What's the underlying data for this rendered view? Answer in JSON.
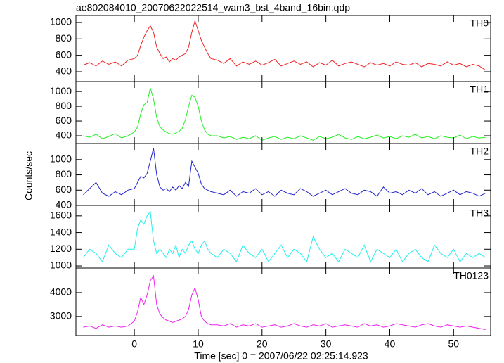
{
  "chart_data": {
    "type": "line",
    "title": "ae802084010_20070622022514_wam3_bst_4band_16bin.qdp",
    "xlabel": "Time [sec] 0 = 2007/06/22 02:25:14.923",
    "ylabel": "Counts/sec",
    "x": [
      -8,
      -7,
      -6,
      -5,
      -4,
      -3,
      -2,
      -1,
      0,
      0.5,
      1,
      1.5,
      2,
      2.5,
      3,
      3.5,
      4,
      4.5,
      5,
      5.5,
      6,
      6.5,
      7,
      7.5,
      8,
      8.5,
      9,
      9.5,
      10,
      10.5,
      11,
      11.5,
      12,
      13,
      14,
      15,
      16,
      17,
      18,
      19,
      20,
      21,
      22,
      23,
      24,
      25,
      26,
      27,
      28,
      29,
      30,
      31,
      32,
      33,
      34,
      35,
      36,
      37,
      38,
      39,
      40,
      41,
      42,
      43,
      44,
      45,
      46,
      47,
      48,
      49,
      50,
      51,
      52,
      53,
      54,
      55
    ],
    "xlim": [
      -9.15,
      55.8
    ],
    "xticks": [
      0,
      10,
      20,
      30,
      40,
      50
    ],
    "series": [
      {
        "name": "TH0",
        "color": "#ee2222",
        "ylim": [
          280,
          1085
        ],
        "yticks": [
          400,
          600,
          800,
          1000
        ],
        "values": [
          480,
          510,
          470,
          530,
          490,
          520,
          470,
          540,
          560,
          600,
          720,
          820,
          900,
          960,
          880,
          700,
          620,
          560,
          580,
          520,
          560,
          540,
          580,
          600,
          620,
          700,
          880,
          1020,
          900,
          780,
          700,
          620,
          560,
          540,
          500,
          560,
          470,
          520,
          490,
          530,
          480,
          510,
          550,
          470,
          500,
          530,
          490,
          520,
          460,
          510,
          480,
          540,
          470,
          500,
          520,
          490,
          460,
          510,
          480,
          500,
          470,
          520,
          490,
          480,
          510,
          460,
          500,
          490,
          470,
          520,
          480,
          500,
          460,
          490,
          470,
          420
        ]
      },
      {
        "name": "TH1",
        "color": "#22ee22",
        "ylim": [
          295,
          1135
        ],
        "yticks": [
          400,
          600,
          800,
          1000
        ],
        "values": [
          400,
          380,
          420,
          360,
          390,
          430,
          370,
          400,
          450,
          520,
          700,
          820,
          850,
          1050,
          900,
          650,
          520,
          480,
          450,
          430,
          420,
          440,
          460,
          500,
          620,
          800,
          950,
          920,
          800,
          600,
          480,
          420,
          400,
          400,
          370,
          390,
          350,
          380,
          360,
          400,
          340,
          370,
          390,
          350,
          380,
          360,
          400,
          370,
          340,
          390,
          360,
          380,
          420,
          370,
          350,
          390,
          360,
          380,
          410,
          370,
          390,
          360,
          400,
          380,
          420,
          370,
          390,
          360,
          400,
          380,
          370,
          410,
          360,
          390,
          370,
          380
        ]
      },
      {
        "name": "TH2",
        "color": "#2222cc",
        "ylim": [
          400,
          1210
        ],
        "yticks": [
          400,
          600,
          800,
          1000
        ],
        "values": [
          540,
          620,
          700,
          560,
          520,
          580,
          540,
          600,
          620,
          700,
          780,
          760,
          820,
          980,
          1150,
          800,
          640,
          600,
          620,
          580,
          640,
          600,
          660,
          620,
          700,
          650,
          980,
          900,
          820,
          680,
          620,
          600,
          580,
          560,
          540,
          600,
          520,
          580,
          560,
          620,
          540,
          580,
          520,
          600,
          560,
          540,
          620,
          580,
          520,
          560,
          600,
          540,
          580,
          620,
          560,
          540,
          600,
          580,
          520,
          640,
          560,
          580,
          540,
          600,
          560,
          620,
          540,
          580,
          520,
          560,
          600,
          540,
          580,
          560,
          520,
          560
        ]
      },
      {
        "name": "TH3",
        "color": "#22eeee",
        "ylim": [
          975,
          1725
        ],
        "yticks": [
          1000,
          1200,
          1400,
          1600
        ],
        "values": [
          1100,
          1200,
          1150,
          1050,
          1250,
          1150,
          1100,
          1200,
          1200,
          1450,
          1550,
          1500,
          1600,
          1650,
          1300,
          1150,
          1200,
          1150,
          1100,
          1200,
          1150,
          1250,
          1100,
          1200,
          1150,
          1250,
          1300,
          1200,
          1150,
          1250,
          1300,
          1200,
          1150,
          1100,
          1200,
          1150,
          1050,
          1250,
          1150,
          1100,
          1200,
          1050,
          1150,
          1250,
          1100,
          1200,
          1150,
          1050,
          1350,
          1200,
          1100,
          1150,
          1050,
          1200,
          1150,
          1100,
          1250,
          1050,
          1200,
          1150,
          1100,
          1200,
          1050,
          1150,
          1200,
          1100,
          1050,
          1250,
          1150,
          1100,
          1200,
          1050,
          1150,
          1100,
          1150,
          1100
        ]
      },
      {
        "name": "TH0123",
        "color": "#ee22ee",
        "ylim": [
          2200,
          5030
        ],
        "yticks": [
          3000,
          4000
        ],
        "values": [
          2550,
          2600,
          2500,
          2650,
          2550,
          2600,
          2550,
          2600,
          2800,
          3200,
          3800,
          3500,
          3900,
          4500,
          4700,
          3500,
          3100,
          2950,
          2850,
          2800,
          2750,
          2800,
          2850,
          2900,
          3000,
          3300,
          3900,
          4200,
          3700,
          3000,
          2800,
          2700,
          2650,
          2650,
          2600,
          2700,
          2550,
          2650,
          2600,
          2700,
          2550,
          2600,
          2650,
          2550,
          2600,
          2700,
          2600,
          2550,
          2650,
          2600,
          2700,
          2550,
          2600,
          2650,
          2600,
          2550,
          2700,
          2600,
          2650,
          2550,
          2600,
          2700,
          2650,
          2600,
          2550,
          2650,
          2700,
          2600,
          2550,
          2650,
          2600,
          2550,
          2600,
          2550,
          2500,
          2450
        ]
      }
    ]
  }
}
